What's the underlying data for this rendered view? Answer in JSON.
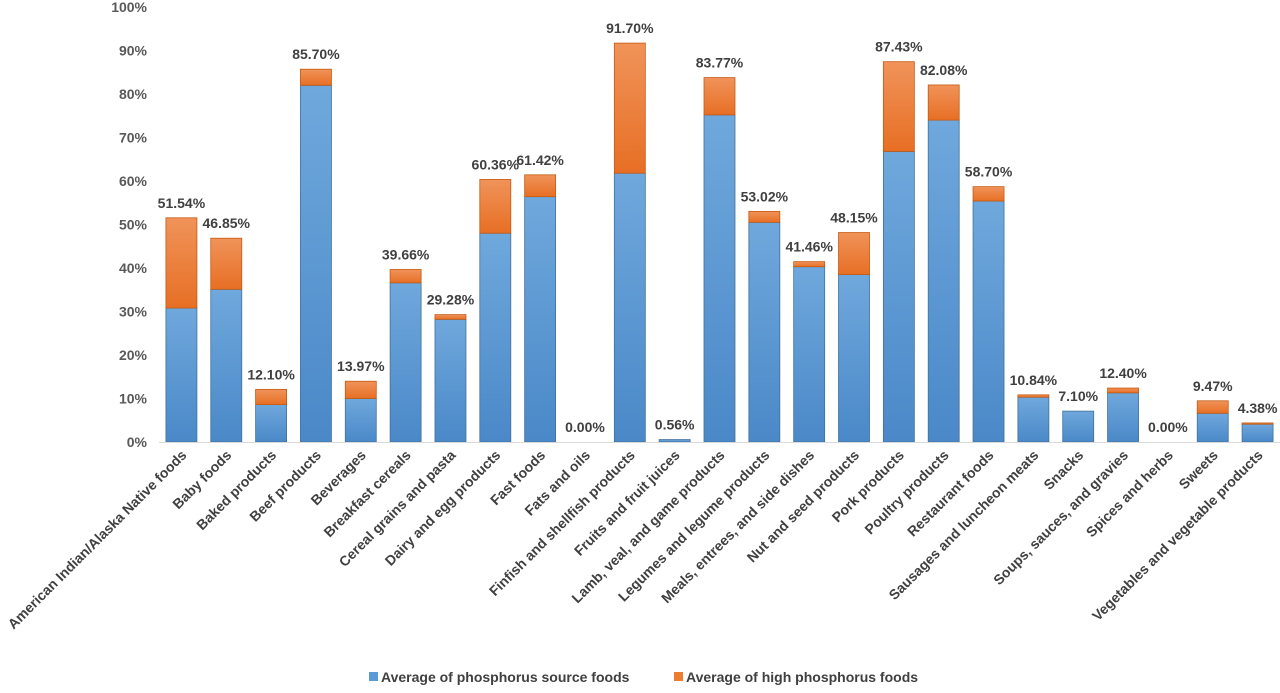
{
  "chart_data": {
    "type": "bar",
    "stacked": true,
    "title": "",
    "xlabel": "",
    "ylabel": "",
    "ylim": [
      0,
      100
    ],
    "yticks": [
      "0%",
      "10%",
      "20%",
      "30%",
      "40%",
      "50%",
      "60%",
      "70%",
      "80%",
      "90%",
      "100%"
    ],
    "grid": false,
    "legend_position": "bottom",
    "categories": [
      "American Indian/Alaska Native foods",
      "Baby foods",
      "Baked products",
      "Beef products",
      "Beverages",
      "Breakfast cereals",
      "Cereal grains and pasta",
      "Dairy and egg products",
      "Fast foods",
      "Fats and oils",
      "Finfish and shellfish products",
      "Fruits and fruit juices",
      "Lamb, veal, and game products",
      "Legumes and legume products",
      "Meals, entrees, and side dishes",
      "Nut and seed products",
      "Pork products",
      "Poultry products",
      "Restaurant foods",
      "Sausages and luncheon meats",
      "Snacks",
      "Soups, sauces, and gravies",
      "Spices and herbs",
      "Sweets",
      "Vegetables and vegetable products"
    ],
    "series": [
      {
        "name": "Average of phosphorus source foods",
        "color": "#5b9bd5",
        "values": [
          30.8,
          35.1,
          8.6,
          82.0,
          10.0,
          36.6,
          28.2,
          48.0,
          56.4,
          0.0,
          61.8,
          0.56,
          75.2,
          50.5,
          40.3,
          38.5,
          66.8,
          74.0,
          55.4,
          10.3,
          7.1,
          11.3,
          0.0,
          6.6,
          4.1
        ]
      },
      {
        "name": "Average of high phosphorus foods",
        "color": "#ed7d31",
        "values": [
          20.74,
          11.75,
          3.5,
          3.7,
          3.97,
          3.06,
          1.08,
          12.36,
          5.02,
          0.0,
          29.9,
          0.0,
          8.57,
          2.52,
          1.16,
          9.65,
          20.63,
          8.08,
          3.3,
          0.54,
          0.0,
          1.1,
          0.0,
          2.87,
          0.28
        ]
      }
    ],
    "data_labels": [
      "51.54%",
      "46.85%",
      "12.10%",
      "85.70%",
      "13.97%",
      "39.66%",
      "29.28%",
      "60.36%",
      "61.42%",
      "0.00%",
      "91.70%",
      "0.56%",
      "83.77%",
      "53.02%",
      "41.46%",
      "48.15%",
      "87.43%",
      "82.08%",
      "58.70%",
      "10.84%",
      "7.10%",
      "12.40%",
      "0.00%",
      "9.47%",
      "4.38%"
    ]
  }
}
